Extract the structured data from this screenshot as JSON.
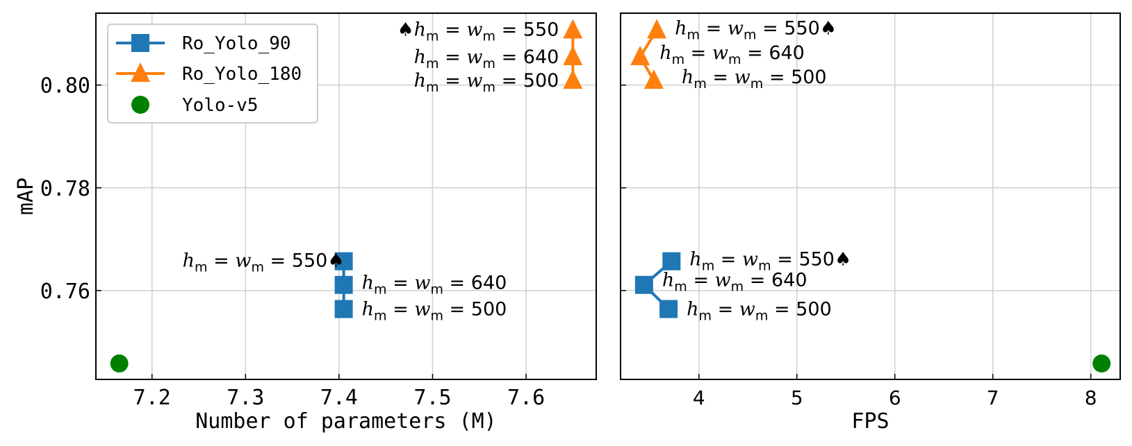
{
  "chart_data": [
    {
      "type": "line",
      "title": "",
      "xlabel": "Number of parameters (M)",
      "ylabel": "mAP",
      "xlim": [
        7.14,
        7.675
      ],
      "ylim": [
        0.7427,
        0.814
      ],
      "xticks": [
        "7.2",
        "7.3",
        "7.4",
        "7.5",
        "7.6"
      ],
      "yticks": [
        "0.76",
        "0.78",
        "0.80"
      ],
      "grid": true,
      "legend": "top-left",
      "series": [
        {
          "name": "Ro_Yolo_90",
          "color": "#1f77b4",
          "marker": "square",
          "points": [
            {
              "x": 7.405,
              "y": 0.7564
            },
            {
              "x": 7.405,
              "y": 0.7611
            },
            {
              "x": 7.405,
              "y": 0.7657
            }
          ],
          "labels": [
            {
              "pre": "",
              "h": "h",
              "m1": "m",
              "eq1": " = ",
              "w": "w",
              "m2": "m",
              "eq2": " = ",
              "value": "500",
              "post": ""
            },
            {
              "pre": "",
              "h": "h",
              "m1": "m",
              "eq1": " = ",
              "w": "w",
              "m2": "m",
              "eq2": " = ",
              "value": "640",
              "post": ""
            },
            {
              "pre": "",
              "h": "h",
              "m1": "m",
              "eq1": " = ",
              "w": "w",
              "m2": "m",
              "eq2": " = ",
              "value": "550",
              "post": "♠"
            }
          ]
        },
        {
          "name": "Ro_Yolo_180",
          "color": "#ff7f0e",
          "marker": "triangle",
          "points": [
            {
              "x": 7.65,
              "y": 0.8009
            },
            {
              "x": 7.65,
              "y": 0.8055
            },
            {
              "x": 7.65,
              "y": 0.8107
            }
          ],
          "labels": [
            {
              "pre": "",
              "h": "h",
              "m1": "m",
              "eq1": " = ",
              "w": "w",
              "m2": "m",
              "eq2": " = ",
              "value": "500",
              "post": ""
            },
            {
              "pre": "",
              "h": "h",
              "m1": "m",
              "eq1": " = ",
              "w": "w",
              "m2": "m",
              "eq2": " = ",
              "value": "640",
              "post": ""
            },
            {
              "pre": "♠",
              "h": "h",
              "m1": "m",
              "eq1": " = ",
              "w": "w",
              "m2": "m",
              "eq2": " = ",
              "value": "550",
              "post": ""
            }
          ]
        },
        {
          "name": "Yolo-v5",
          "color": "#008000",
          "marker": "circle",
          "points": [
            {
              "x": 7.165,
              "y": 0.7458
            }
          ]
        }
      ]
    },
    {
      "type": "line",
      "title": "",
      "xlabel": "FPS",
      "ylabel": "",
      "xlim": [
        3.2,
        8.3
      ],
      "ylim": [
        0.7427,
        0.814
      ],
      "xticks": [
        "4",
        "5",
        "6",
        "7",
        "8"
      ],
      "grid": true,
      "series": [
        {
          "name": "Ro_Yolo_90",
          "color": "#1f77b4",
          "marker": "square",
          "points": [
            {
              "x": 3.69,
              "y": 0.7564
            },
            {
              "x": 3.44,
              "y": 0.7611
            },
            {
              "x": 3.72,
              "y": 0.7657
            }
          ],
          "labels": [
            {
              "pre": "",
              "h": "h",
              "m1": "m",
              "eq1": " = ",
              "w": "w",
              "m2": "m",
              "eq2": " = ",
              "value": "500",
              "post": ""
            },
            {
              "pre": "",
              "h": "h",
              "m1": "m",
              "eq1": " = ",
              "w": "w",
              "m2": "m",
              "eq2": " = ",
              "value": "640",
              "post": ""
            },
            {
              "pre": "",
              "h": "h",
              "m1": "m",
              "eq1": " = ",
              "w": "w",
              "m2": "m",
              "eq2": " = ",
              "value": "550",
              "post": "♠"
            }
          ]
        },
        {
          "name": "Ro_Yolo_180",
          "color": "#ff7f0e",
          "marker": "triangle",
          "points": [
            {
              "x": 3.54,
              "y": 0.8009
            },
            {
              "x": 3.4,
              "y": 0.8055
            },
            {
              "x": 3.57,
              "y": 0.8107
            }
          ],
          "labels": [
            {
              "pre": "",
              "h": "h",
              "m1": "m",
              "eq1": " = ",
              "w": "w",
              "m2": "m",
              "eq2": " = ",
              "value": "500",
              "post": ""
            },
            {
              "pre": "",
              "h": "h",
              "m1": "m",
              "eq1": " = ",
              "w": "w",
              "m2": "m",
              "eq2": " = ",
              "value": "640",
              "post": ""
            },
            {
              "pre": "",
              "h": "h",
              "m1": "m",
              "eq1": " = ",
              "w": "w",
              "m2": "m",
              "eq2": " = ",
              "value": "550",
              "post": "♠"
            }
          ]
        },
        {
          "name": "Yolo-v5",
          "color": "#008000",
          "marker": "circle",
          "points": [
            {
              "x": 8.11,
              "y": 0.7458
            }
          ]
        }
      ]
    }
  ]
}
